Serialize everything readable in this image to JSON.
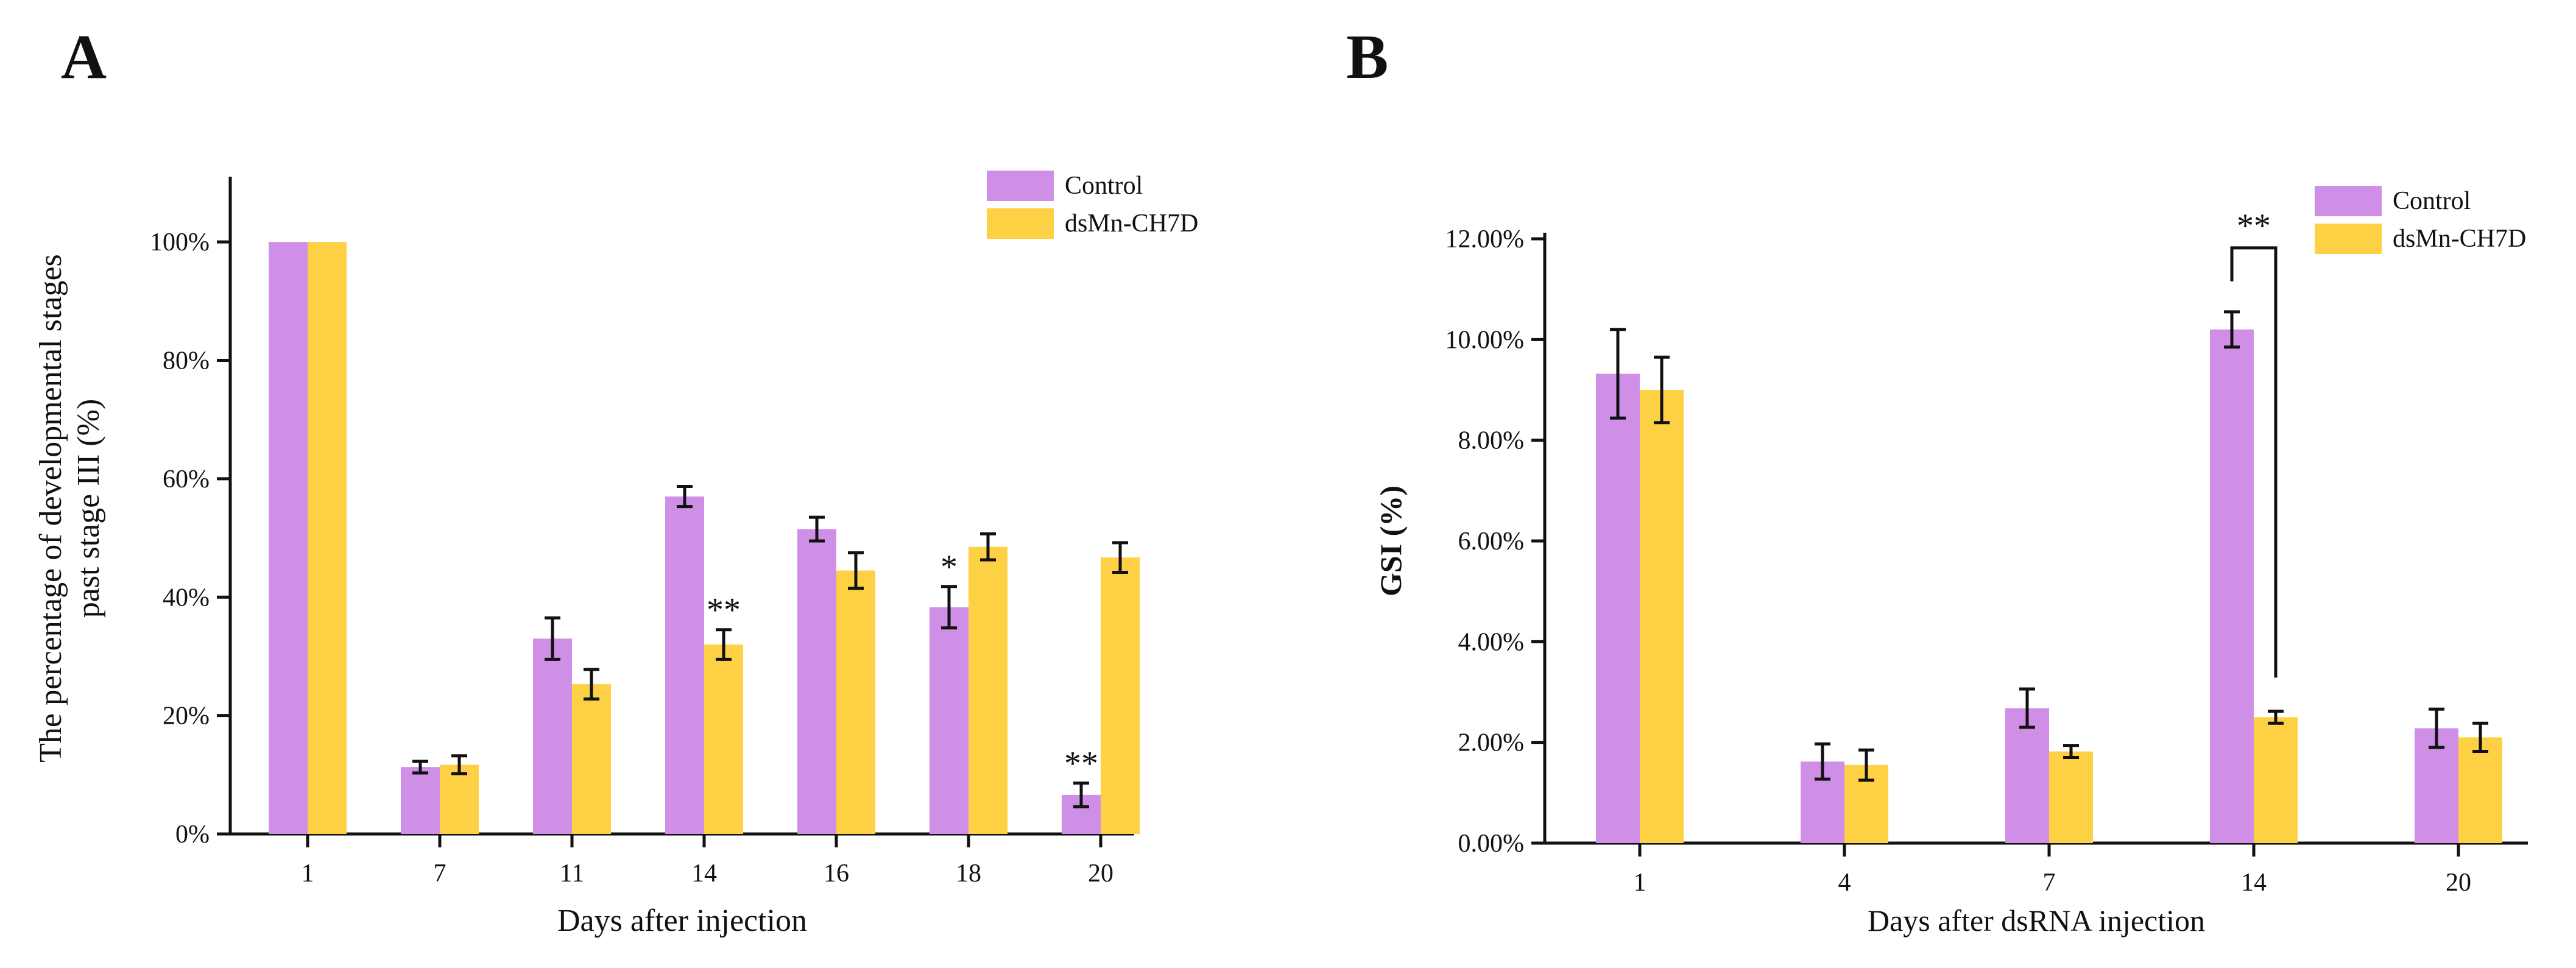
{
  "colors": {
    "control": "#cf8fe6",
    "treatment": "#fed043",
    "axis": "#111111"
  },
  "chart_data": [
    {
      "panel": "A",
      "type": "bar",
      "title": "",
      "xlabel": "Days after injection",
      "ylabel_lines": [
        "The percentage of developmental  stages",
        "past stage III  (%)"
      ],
      "categories": [
        "1",
        "7",
        "11",
        "14",
        "16",
        "18",
        "20"
      ],
      "ylim": [
        0,
        110
      ],
      "yticks": [
        0,
        20,
        40,
        60,
        80,
        100
      ],
      "ytick_labels": [
        "0%",
        "20%",
        "40%",
        "60%",
        "80%",
        "100%"
      ],
      "legend_position": "top-right",
      "series": [
        {
          "name": "Control",
          "values": [
            100,
            11.3,
            33,
            57,
            51.5,
            38.3,
            6.6
          ],
          "errors": [
            0,
            1.0,
            3.5,
            1.7,
            2.0,
            3.5,
            2.0
          ]
        },
        {
          "name": "dsMn-CH7D",
          "values": [
            100,
            11.7,
            25.3,
            32,
            44.5,
            48.5,
            46.7
          ],
          "errors": [
            0,
            1.5,
            2.5,
            2.5,
            3.0,
            2.2,
            2.5
          ]
        }
      ],
      "annotations": [
        {
          "text": "**",
          "category": "14",
          "series": 1
        },
        {
          "text": "*",
          "category": "18",
          "series": 0
        },
        {
          "text": "**",
          "category": "20",
          "series": 0
        }
      ]
    },
    {
      "panel": "B",
      "type": "bar",
      "title": "",
      "xlabel": "Days after dsRNA injection",
      "ylabel_lines": [
        "GSI  (%)"
      ],
      "categories": [
        "1",
        "4",
        "7",
        "14",
        "20"
      ],
      "ylim": [
        0,
        12
      ],
      "yticks": [
        0,
        2,
        4,
        6,
        8,
        10,
        12
      ],
      "ytick_labels": [
        "0.00%",
        "2.00%",
        "4.00%",
        "6.00%",
        "8.00%",
        "10.00%",
        "12.00%"
      ],
      "legend_position": "top-right",
      "series": [
        {
          "name": "Control",
          "values": [
            9.32,
            1.62,
            2.68,
            10.2,
            2.28
          ],
          "errors": [
            0.88,
            0.35,
            0.38,
            0.35,
            0.38
          ]
        },
        {
          "name": "dsMn-CH7D",
          "values": [
            9.0,
            1.55,
            1.82,
            2.5,
            2.1
          ],
          "errors": [
            0.65,
            0.3,
            0.12,
            0.12,
            0.28
          ]
        }
      ],
      "annotations": [
        {
          "text": "**",
          "category": "14",
          "bracket": true
        }
      ]
    }
  ]
}
